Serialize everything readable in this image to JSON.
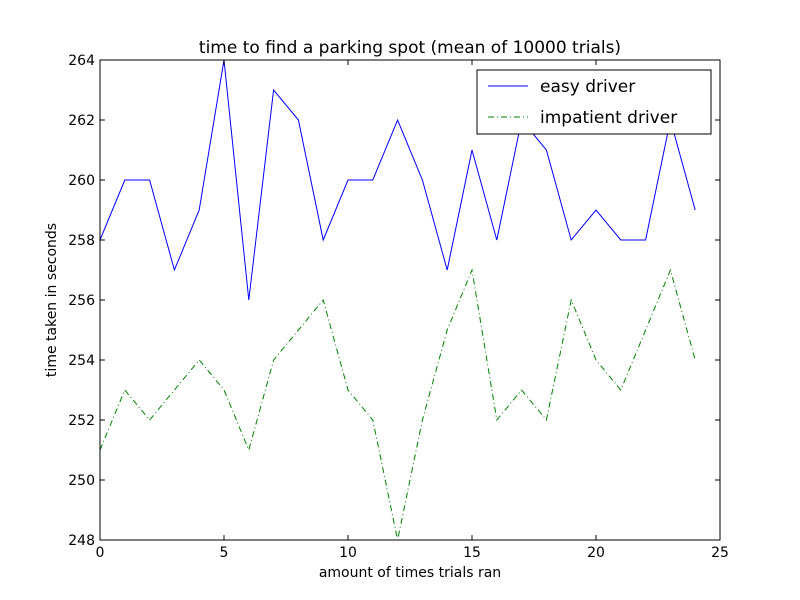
{
  "chart_data": {
    "type": "line",
    "title": "time to find a parking spot (mean of 10000 trials)",
    "xlabel": "amount of times trials ran",
    "ylabel": "time taken in seconds",
    "xlim": [
      0,
      25
    ],
    "ylim": [
      248,
      264
    ],
    "xticks": [
      0,
      5,
      10,
      15,
      20,
      25
    ],
    "yticks": [
      248,
      250,
      252,
      254,
      256,
      258,
      260,
      262,
      264
    ],
    "grid": false,
    "legend_position": "top-right",
    "x": [
      0,
      1,
      2,
      3,
      4,
      5,
      6,
      7,
      8,
      9,
      10,
      11,
      12,
      13,
      14,
      15,
      16,
      17,
      18,
      19,
      20,
      21,
      22,
      23,
      24
    ],
    "series": [
      {
        "name": "easy driver",
        "color": "#0000ff",
        "style": "solid",
        "values": [
          258,
          260,
          260,
          257,
          259,
          264,
          256,
          263,
          262,
          258,
          260,
          260,
          262,
          260,
          257,
          261,
          258,
          262,
          261,
          258,
          259,
          258,
          258,
          262,
          259
        ]
      },
      {
        "name": "impatient driver",
        "color": "#008000",
        "style": "dashdot",
        "values": [
          251,
          253,
          252,
          253,
          254,
          253,
          251,
          254,
          255,
          256,
          253,
          252,
          248,
          252,
          255,
          257,
          252,
          253,
          252,
          256,
          254,
          253,
          255,
          257,
          254
        ]
      }
    ]
  }
}
